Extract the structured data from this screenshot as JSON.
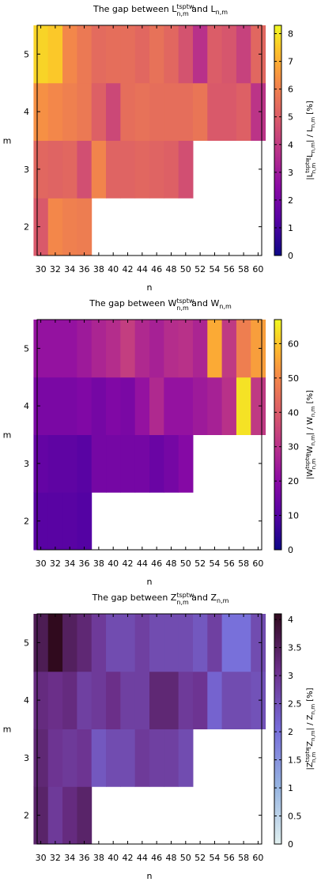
{
  "chart_data": [
    {
      "type": "heatmap",
      "title": {
        "main": "The gap between L",
        "sup": "tsptw",
        "sub": "n,m",
        "mid": " and L",
        "sub2": "n,m"
      },
      "xlabel": "n",
      "ylabel": "m",
      "colorbar_label": "|L^tsptw_n,m -L_n,m| / L_n,m [%]",
      "colorbar_label_parts": {
        "a": "|L",
        "a_sup": "tsptw",
        "a_sub": "n,m",
        "b": " -L",
        "b_sub": "n,m",
        "c": "| / L",
        "c_sub": "n,m",
        "d": " [%]"
      },
      "x": [
        30,
        32,
        34,
        36,
        38,
        40,
        42,
        44,
        46,
        48,
        50,
        52,
        54,
        56,
        58,
        60
      ],
      "x_tick_labels": [
        "30",
        "32",
        "34",
        "36",
        "38",
        "40",
        "42",
        "44",
        "46",
        "48",
        "50",
        "52",
        "54",
        "56",
        "58",
        "60"
      ],
      "y": [
        2,
        3,
        4,
        5
      ],
      "y_tick_labels": [
        "2",
        "3",
        "4",
        "5"
      ],
      "xlim": [
        29.5,
        60.5
      ],
      "ylim": [
        1.5,
        5.5
      ],
      "colorbar_range": [
        0,
        8.3
      ],
      "colorbar_ticks": [
        0,
        1,
        2,
        3,
        4,
        5,
        6,
        7,
        8
      ],
      "colormap": "plasma",
      "z": [
        [
          4.9,
          6.2,
          6.0,
          5.9,
          null,
          null,
          null,
          null,
          null,
          null,
          null,
          null,
          null,
          null,
          null,
          null
        ],
        [
          5.3,
          5.2,
          5.3,
          4.6,
          6.1,
          5.2,
          5.2,
          5.3,
          5.2,
          5.1,
          4.6,
          null,
          null,
          null,
          null,
          null
        ],
        [
          6.4,
          6.2,
          6.0,
          5.8,
          5.1,
          4.4,
          5.5,
          5.6,
          5.5,
          5.5,
          5.5,
          5.7,
          4.9,
          4.9,
          5.1,
          3.8
        ],
        [
          7.7,
          7.5,
          6.2,
          5.8,
          5.4,
          5.5,
          5.5,
          5.3,
          5.6,
          5.3,
          4.7,
          3.7,
          5.0,
          4.8,
          4.2,
          5.3
        ]
      ]
    },
    {
      "type": "heatmap",
      "title": {
        "main": "The gap between W",
        "sup": "tsptw",
        "sub": "n,m",
        "mid": " and W",
        "sub2": "n,m"
      },
      "xlabel": "n",
      "ylabel": "m",
      "colorbar_label": "|W^tsptw_n,m -W_n,m| / W_n,m [%]",
      "colorbar_label_parts": {
        "a": "|W",
        "a_sup": "tsptw",
        "a_sub": "n,m",
        "b": " -W",
        "b_sub": "n,m",
        "c": "| / W",
        "c_sub": "n,m",
        "d": " [%]"
      },
      "x": [
        30,
        32,
        34,
        36,
        38,
        40,
        42,
        44,
        46,
        48,
        50,
        52,
        54,
        56,
        58,
        60
      ],
      "x_tick_labels": [
        "30",
        "32",
        "34",
        "36",
        "38",
        "40",
        "42",
        "44",
        "46",
        "48",
        "50",
        "52",
        "54",
        "56",
        "58",
        "60"
      ],
      "y": [
        2,
        3,
        4,
        5
      ],
      "y_tick_labels": [
        "2",
        "3",
        "4",
        "5"
      ],
      "xlim": [
        29.5,
        60.5
      ],
      "ylim": [
        1.5,
        5.5
      ],
      "colorbar_range": [
        0,
        67
      ],
      "colorbar_ticks": [
        0,
        10,
        20,
        30,
        40,
        50,
        60
      ],
      "colormap": "plasma",
      "z": [
        [
          11,
          11,
          11,
          10,
          null,
          null,
          null,
          null,
          null,
          null,
          null,
          null,
          null,
          null,
          null,
          null
        ],
        [
          13,
          12,
          12,
          11,
          16,
          16,
          16,
          16,
          14,
          16,
          19,
          null,
          null,
          null,
          null,
          null
        ],
        [
          17,
          17,
          17,
          18,
          16,
          18,
          17,
          22,
          28,
          22,
          22,
          24,
          26,
          30,
          64,
          32
        ],
        [
          22,
          22,
          22,
          24,
          27,
          29,
          33,
          28,
          26,
          29,
          30,
          27,
          56,
          32,
          48,
          54
        ]
      ]
    },
    {
      "type": "heatmap",
      "title": {
        "main": "The gap between Z",
        "sup": "tsptw",
        "sub": "n,m",
        "mid": " and Z",
        "sub2": "n,m"
      },
      "xlabel": "n",
      "ylabel": "m",
      "colorbar_label": "|Z^tsptw_n,m -Z_n,m| / Z_n,m [%]",
      "colorbar_label_parts": {
        "a": "|Z",
        "a_sup": "tsptw",
        "a_sub": "n,m",
        "b": " -Z",
        "b_sub": "n,m",
        "c": "| / Z",
        "c_sub": "n,m",
        "d": " [%]"
      },
      "x": [
        30,
        32,
        34,
        36,
        38,
        40,
        42,
        44,
        46,
        48,
        50,
        52,
        54,
        56,
        58,
        60
      ],
      "x_tick_labels": [
        "30",
        "32",
        "34",
        "36",
        "38",
        "40",
        "42",
        "44",
        "46",
        "48",
        "50",
        "52",
        "54",
        "56",
        "58",
        "60"
      ],
      "y": [
        2,
        3,
        4,
        5
      ],
      "y_tick_labels": [
        "2",
        "3",
        "4",
        "5"
      ],
      "xlim": [
        29.5,
        60.5
      ],
      "ylim": [
        1.5,
        5.5
      ],
      "colorbar_range": [
        0,
        4.1
      ],
      "colorbar_ticks": [
        0,
        0.5,
        1,
        1.5,
        2,
        2.5,
        3,
        3.5,
        4
      ],
      "colorbar_tick_labels": [
        "0",
        "0.5",
        "1",
        "1.5",
        "2",
        "2.5",
        "3",
        "3.5",
        "4"
      ],
      "colormap": "purple",
      "z": [
        [
          3.4,
          2.9,
          3.2,
          3.4,
          null,
          null,
          null,
          null,
          null,
          null,
          null,
          null,
          null,
          null,
          null,
          null
        ],
        [
          3.3,
          3.0,
          2.9,
          3.0,
          2.4,
          2.6,
          2.6,
          2.9,
          2.8,
          2.8,
          2.6,
          null,
          null,
          null,
          null,
          null
        ],
        [
          3.2,
          3.1,
          3.2,
          2.8,
          2.9,
          3.1,
          2.8,
          2.8,
          3.3,
          3.3,
          2.9,
          3.0,
          2.2,
          2.6,
          2.6,
          2.5
        ],
        [
          3.6,
          4.1,
          3.5,
          3.3,
          2.9,
          2.6,
          2.6,
          2.8,
          2.6,
          2.6,
          2.6,
          2.4,
          2.8,
          2.0,
          2.0,
          2.6
        ]
      ]
    }
  ]
}
